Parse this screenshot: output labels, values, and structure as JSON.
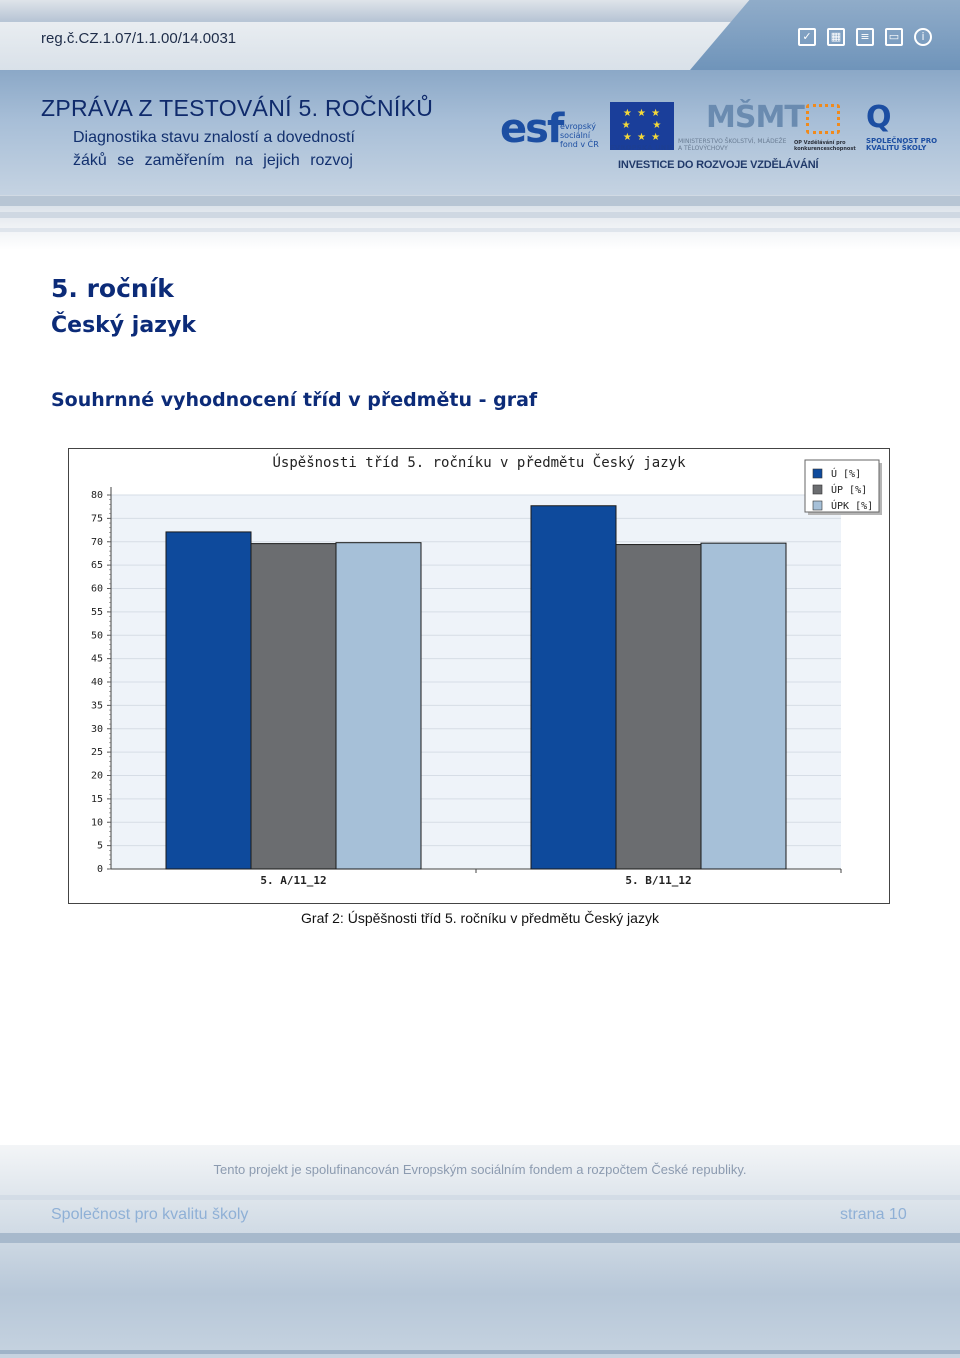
{
  "header": {
    "reg_number": "reg.č.CZ.1.07/1.1.00/14.0031",
    "report_title": "ZPRÁVA Z TESTOVÁNÍ 5. ROČNÍKŮ",
    "subtitle_line1": "Diagnostika stavu znalostí a dovedností",
    "subtitle_line2": "žáků se zaměřením na jejich rozvoj",
    "icons": [
      "checkbox-icon",
      "chart-icon",
      "document-icon",
      "window-icon",
      "info-icon"
    ],
    "logos": {
      "esf_letters": "esf",
      "esf_side": "evropský sociální fond v ČR",
      "eu_label": "EVROPSKÁ UNIE",
      "msmt_letters": "MŠMT",
      "msmt_label": "MINISTERSTVO ŠKOLSTVÍ, MLÁDEŽE A TĚLOVÝCHOVY",
      "op_label": "OP Vzdělávání pro konkurenceschopnost",
      "q_letters": "Q",
      "q_label": "SPOLEČNOST PRO KVALITU ŠKOLY",
      "invest": "INVESTICE DO ROZVOJE VZDĚLÁVÁNÍ"
    }
  },
  "content": {
    "grade": "5. ročník",
    "subject": "Český jazyk",
    "section_title": "Souhrnné vyhodnocení tříd v předmětu - graf",
    "caption": "Graf 2: Úspěšnosti tříd 5. ročníku v předmětu Český jazyk"
  },
  "chart_data": {
    "type": "bar",
    "title": "Úspěšnosti tříd 5. ročníku v předmětu Český jazyk",
    "categories": [
      "5. A/11_12",
      "5. B/11_12"
    ],
    "series": [
      {
        "name": "Ú [%]",
        "values": [
          72.1,
          77.7
        ],
        "color": "#0e4a9c"
      },
      {
        "name": "ÚP [%]",
        "values": [
          69.6,
          69.4
        ],
        "color": "#6b6d70"
      },
      {
        "name": "ÚPK [%]",
        "values": [
          69.8,
          69.7
        ],
        "color": "#a6c0d8"
      }
    ],
    "ylim": [
      0,
      80
    ],
    "yticks": [
      0,
      5,
      10,
      15,
      20,
      25,
      30,
      35,
      40,
      45,
      50,
      55,
      60,
      65,
      70,
      75,
      80
    ],
    "grid": true,
    "legend": "top-right",
    "xlabel": "",
    "ylabel": ""
  },
  "footer": {
    "cofunding": "Tento projekt je spolufinancován Evropským sociálním fondem a rozpočtem České republiky.",
    "organization": "Společnost pro kvalitu školy",
    "page_label": "strana 10"
  }
}
